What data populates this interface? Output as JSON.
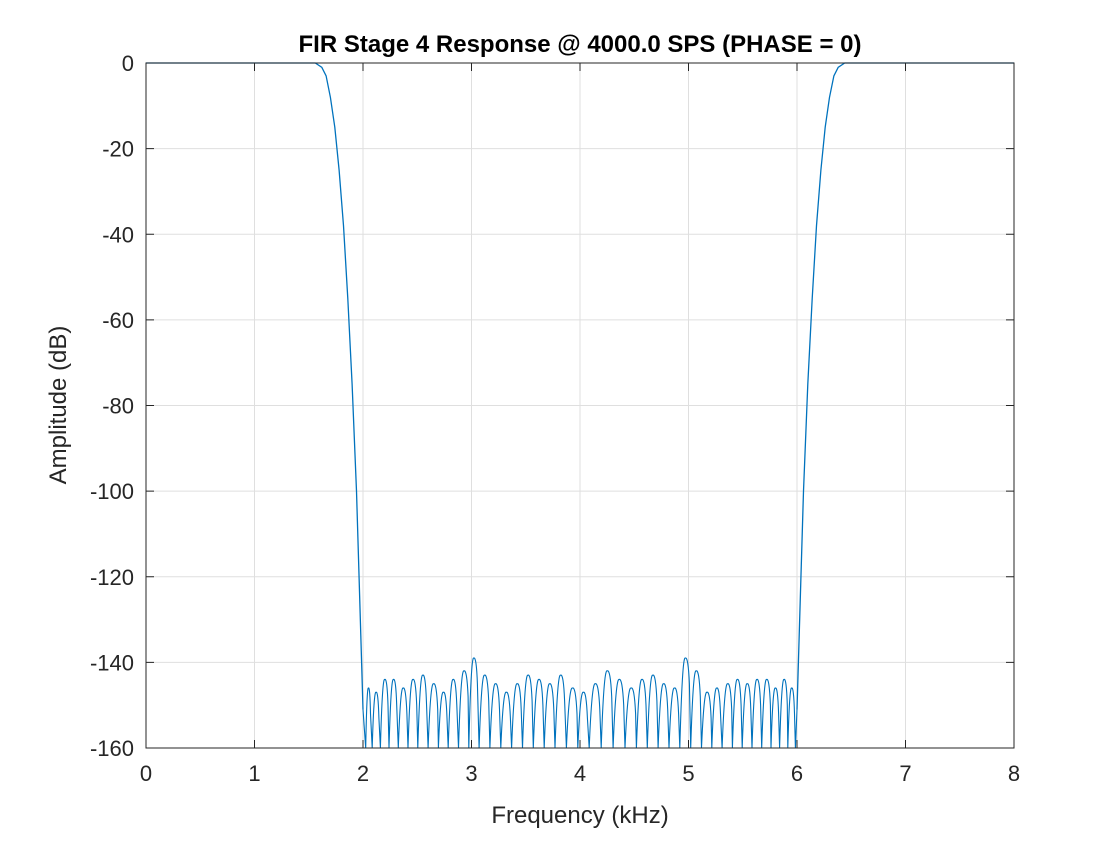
{
  "chart_data": {
    "type": "line",
    "title": "FIR Stage 4 Response @ 4000.0 SPS (PHASE = 0)",
    "xlabel": "Frequency (kHz)",
    "ylabel": "Amplitude (dB)",
    "xlim": [
      0,
      8
    ],
    "ylim": [
      -160,
      0
    ],
    "grid": true,
    "line_color": "#0072BD",
    "x_ticks": [
      "0",
      "1",
      "2",
      "3",
      "4",
      "5",
      "6",
      "7",
      "8"
    ],
    "y_ticks": [
      "0",
      "-20",
      "-40",
      "-60",
      "-80",
      "-100",
      "-120",
      "-140",
      "-160"
    ],
    "series": [
      {
        "x": [
          0.0,
          1.5,
          1.56,
          1.62,
          1.66,
          1.7,
          1.74,
          1.78,
          1.82,
          1.86,
          1.9,
          1.94,
          1.97,
          2.0,
          6.0,
          6.03,
          6.06,
          6.1,
          6.14,
          6.18,
          6.22,
          6.26,
          6.3,
          6.34,
          6.38,
          6.44,
          6.5,
          8.0
        ],
        "y": [
          0,
          0,
          0,
          -1,
          -3,
          -8,
          -15,
          -25,
          -38,
          -55,
          -75,
          -100,
          -125,
          -151,
          -151,
          -125,
          -100,
          -75,
          -55,
          -38,
          -25,
          -15,
          -8,
          -3,
          -1,
          0,
          0,
          0
        ]
      }
    ],
    "stopband": {
      "x_range": [
        2.0,
        6.0
      ],
      "ripple_peaks": [
        {
          "x": 2.05,
          "y": -146
        },
        {
          "x": 2.12,
          "y": -147
        },
        {
          "x": 2.2,
          "y": -144
        },
        {
          "x": 2.28,
          "y": -144
        },
        {
          "x": 2.37,
          "y": -146
        },
        {
          "x": 2.46,
          "y": -144
        },
        {
          "x": 2.55,
          "y": -143
        },
        {
          "x": 2.65,
          "y": -145
        },
        {
          "x": 2.74,
          "y": -147
        },
        {
          "x": 2.83,
          "y": -144
        },
        {
          "x": 2.93,
          "y": -142
        },
        {
          "x": 3.02,
          "y": -139
        },
        {
          "x": 3.12,
          "y": -143
        },
        {
          "x": 3.22,
          "y": -145
        },
        {
          "x": 3.32,
          "y": -147
        },
        {
          "x": 3.42,
          "y": -145
        },
        {
          "x": 3.52,
          "y": -143
        },
        {
          "x": 3.62,
          "y": -144
        },
        {
          "x": 3.72,
          "y": -145
        },
        {
          "x": 3.82,
          "y": -143
        },
        {
          "x": 3.93,
          "y": -146
        },
        {
          "x": 4.03,
          "y": -147
        },
        {
          "x": 4.14,
          "y": -145
        },
        {
          "x": 4.25,
          "y": -142
        },
        {
          "x": 4.36,
          "y": -144
        },
        {
          "x": 4.47,
          "y": -146
        },
        {
          "x": 4.57,
          "y": -144
        },
        {
          "x": 4.67,
          "y": -143
        },
        {
          "x": 4.77,
          "y": -145
        },
        {
          "x": 4.87,
          "y": -146
        },
        {
          "x": 4.97,
          "y": -139
        },
        {
          "x": 5.07,
          "y": -142
        },
        {
          "x": 5.17,
          "y": -147
        },
        {
          "x": 5.26,
          "y": -146
        },
        {
          "x": 5.36,
          "y": -145
        },
        {
          "x": 5.45,
          "y": -144
        },
        {
          "x": 5.54,
          "y": -145
        },
        {
          "x": 5.63,
          "y": -144
        },
        {
          "x": 5.72,
          "y": -144
        },
        {
          "x": 5.8,
          "y": -146
        },
        {
          "x": 5.88,
          "y": -144
        },
        {
          "x": 5.95,
          "y": -146
        }
      ],
      "null_level": -160
    }
  }
}
